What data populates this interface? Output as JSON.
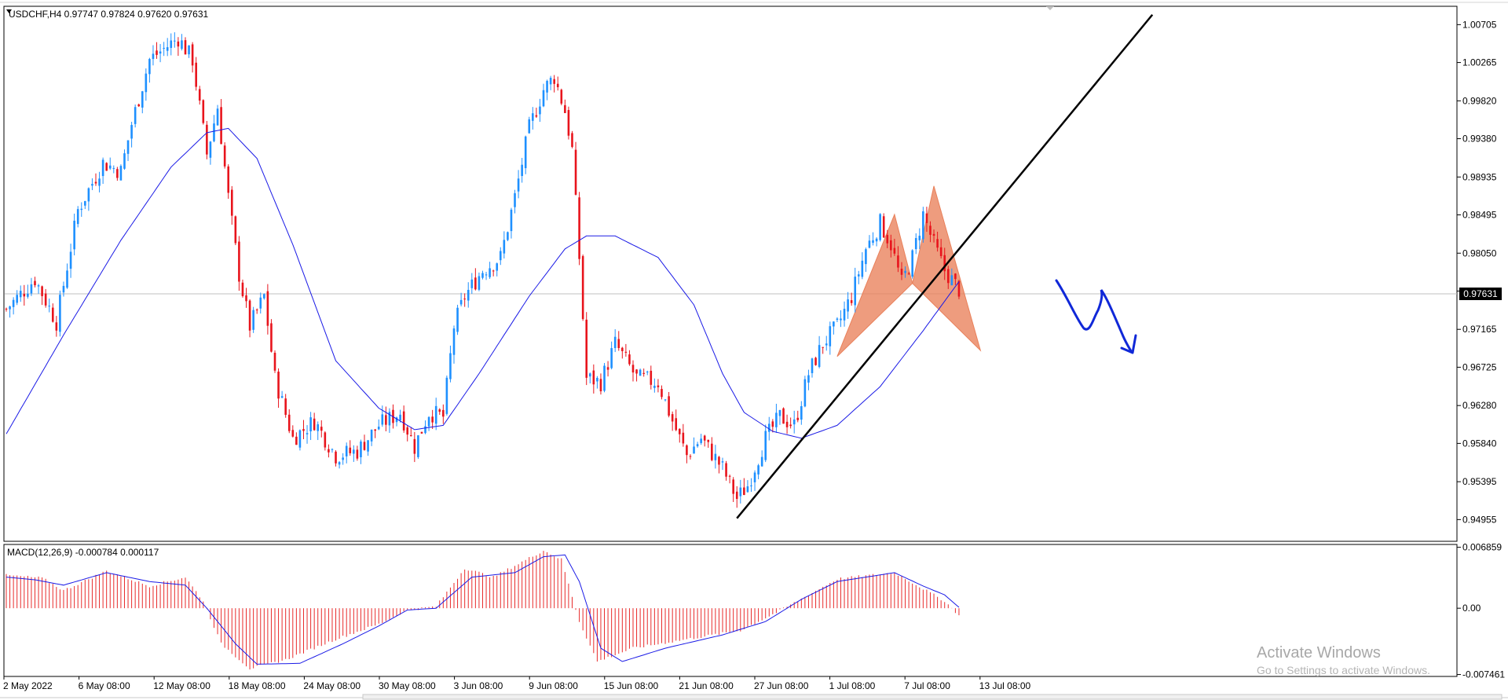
{
  "window": {
    "symbol_info": "USDCHF,H4  0.97747 0.97824 0.97620 0.97631"
  },
  "colors": {
    "bull": "#1e90ff",
    "bear": "#e8141c",
    "ma": "#1a1ae6",
    "macd_hist": "#e82a2a",
    "macd_signal": "#1a1ae6",
    "pattern_fill": "#e9805a",
    "trendline": "#000000",
    "drawing": "#1028d8",
    "frame": "#000000",
    "bid_line": "#c0c0c0"
  },
  "watermark": {
    "title": "Activate Windows",
    "subtitle": "Go to Settings to activate Windows."
  },
  "chart_data": [
    {
      "type": "candlestick",
      "title": "USDCHF,H4  0.97747 0.97824 0.97620 0.97631",
      "ylim": [
        0.9473,
        1.009
      ],
      "y_ticks": [
        "1.00705",
        "1.00265",
        "0.99820",
        "0.99380",
        "0.98935",
        "0.98495",
        "0.98050",
        "0.97610",
        "0.97165",
        "0.96725",
        "0.96280",
        "0.95840",
        "0.95395",
        "0.94955"
      ],
      "current_price": "0.97631",
      "x_ticks": [
        "2 May 2022",
        "6 May 08:00",
        "12 May 08:00",
        "18 May 08:00",
        "24 May 08:00",
        "30 May 08:00",
        "3 Jun 08:00",
        "9 Jun 08:00",
        "15 Jun 08:00",
        "21 Jun 08:00",
        "27 Jun 08:00",
        "1 Jul 08:00",
        "7 Jul 08:00",
        "13 Jul 08:00"
      ],
      "price_path": [
        {
          "bar": 0,
          "close": 0.974
        },
        {
          "bar": 8,
          "close": 0.9775
        },
        {
          "bar": 14,
          "close": 0.9725
        },
        {
          "bar": 20,
          "close": 0.9855
        },
        {
          "bar": 27,
          "close": 0.991
        },
        {
          "bar": 32,
          "close": 0.99
        },
        {
          "bar": 35,
          "close": 0.9955
        },
        {
          "bar": 40,
          "close": 1.003
        },
        {
          "bar": 48,
          "close": 1.0055
        },
        {
          "bar": 52,
          "close": 1.003
        },
        {
          "bar": 56,
          "close": 0.992
        },
        {
          "bar": 59,
          "close": 0.9975
        },
        {
          "bar": 62,
          "close": 0.987
        },
        {
          "bar": 65,
          "close": 0.978
        },
        {
          "bar": 68,
          "close": 0.972
        },
        {
          "bar": 72,
          "close": 0.9755
        },
        {
          "bar": 75,
          "close": 0.966
        },
        {
          "bar": 80,
          "close": 0.959
        },
        {
          "bar": 86,
          "close": 0.961
        },
        {
          "bar": 92,
          "close": 0.957
        },
        {
          "bar": 98,
          "close": 0.9575
        },
        {
          "bar": 104,
          "close": 0.9605
        },
        {
          "bar": 110,
          "close": 0.962
        },
        {
          "bar": 114,
          "close": 0.958
        },
        {
          "bar": 118,
          "close": 0.962
        },
        {
          "bar": 122,
          "close": 0.9615
        },
        {
          "bar": 125,
          "close": 0.972
        },
        {
          "bar": 128,
          "close": 0.9755
        },
        {
          "bar": 133,
          "close": 0.9785
        },
        {
          "bar": 138,
          "close": 0.98
        },
        {
          "bar": 142,
          "close": 0.987
        },
        {
          "bar": 146,
          "close": 0.995
        },
        {
          "bar": 150,
          "close": 0.9995
        },
        {
          "bar": 153,
          "close": 1.001
        },
        {
          "bar": 156,
          "close": 0.997
        },
        {
          "bar": 158,
          "close": 0.9925
        },
        {
          "bar": 160,
          "close": 0.98
        },
        {
          "bar": 162,
          "close": 0.966
        },
        {
          "bar": 166,
          "close": 0.9655
        },
        {
          "bar": 170,
          "close": 0.97
        },
        {
          "bar": 176,
          "close": 0.966
        },
        {
          "bar": 182,
          "close": 0.9655
        },
        {
          "bar": 186,
          "close": 0.961
        },
        {
          "bar": 190,
          "close": 0.957
        },
        {
          "bar": 194,
          "close": 0.959
        },
        {
          "bar": 200,
          "close": 0.9555
        },
        {
          "bar": 204,
          "close": 0.952
        },
        {
          "bar": 207,
          "close": 0.9535
        },
        {
          "bar": 212,
          "close": 0.959
        },
        {
          "bar": 216,
          "close": 0.9615
        },
        {
          "bar": 220,
          "close": 0.9605
        },
        {
          "bar": 224,
          "close": 0.9665
        },
        {
          "bar": 228,
          "close": 0.97
        },
        {
          "bar": 232,
          "close": 0.972
        },
        {
          "bar": 236,
          "close": 0.9755
        },
        {
          "bar": 240,
          "close": 0.981
        },
        {
          "bar": 244,
          "close": 0.984
        },
        {
          "bar": 247,
          "close": 0.9815
        },
        {
          "bar": 250,
          "close": 0.977
        },
        {
          "bar": 253,
          "close": 0.98
        },
        {
          "bar": 256,
          "close": 0.985
        },
        {
          "bar": 259,
          "close": 0.9815
        },
        {
          "bar": 262,
          "close": 0.9785
        },
        {
          "bar": 266,
          "close": 0.9763
        }
      ],
      "moving_average": [
        {
          "bar": 0,
          "value": 0.9595
        },
        {
          "bar": 16,
          "value": 0.971
        },
        {
          "bar": 32,
          "value": 0.982
        },
        {
          "bar": 46,
          "value": 0.9905
        },
        {
          "bar": 56,
          "value": 0.9945
        },
        {
          "bar": 62,
          "value": 0.995
        },
        {
          "bar": 70,
          "value": 0.9915
        },
        {
          "bar": 80,
          "value": 0.9815
        },
        {
          "bar": 92,
          "value": 0.968
        },
        {
          "bar": 104,
          "value": 0.9625
        },
        {
          "bar": 114,
          "value": 0.96
        },
        {
          "bar": 122,
          "value": 0.9605
        },
        {
          "bar": 132,
          "value": 0.9665
        },
        {
          "bar": 146,
          "value": 0.9755
        },
        {
          "bar": 156,
          "value": 0.981
        },
        {
          "bar": 162,
          "value": 0.9825
        },
        {
          "bar": 170,
          "value": 0.9825
        },
        {
          "bar": 182,
          "value": 0.98
        },
        {
          "bar": 192,
          "value": 0.9745
        },
        {
          "bar": 200,
          "value": 0.9665
        },
        {
          "bar": 206,
          "value": 0.962
        },
        {
          "bar": 214,
          "value": 0.9598
        },
        {
          "bar": 222,
          "value": 0.959
        },
        {
          "bar": 232,
          "value": 0.9605
        },
        {
          "bar": 244,
          "value": 0.965
        },
        {
          "bar": 256,
          "value": 0.9715
        },
        {
          "bar": 266,
          "value": 0.9772
        }
      ],
      "trendline": [
        {
          "bar": 204,
          "price": 0.9497
        },
        {
          "bar": 320,
          "price": 1.0082
        }
      ],
      "harmonic_pattern": {
        "left": [
          {
            "bar": 232,
            "price": 0.9685
          },
          {
            "bar": 248,
            "price": 0.985
          },
          {
            "bar": 253,
            "price": 0.977
          }
        ],
        "right": [
          {
            "bar": 253,
            "price": 0.977
          },
          {
            "bar": 259,
            "price": 0.9883
          },
          {
            "bar": 272,
            "price": 0.9692
          }
        ]
      }
    },
    {
      "type": "bar",
      "title": "MACD(12,26,9) -0.000784 0.000117",
      "ylim": [
        -0.0075,
        0.007
      ],
      "y_ticks": [
        "0.006859",
        "0.00",
        "-0.007461"
      ],
      "histogram": [
        {
          "bar": 0,
          "value": 0.0037
        },
        {
          "bar": 10,
          "value": 0.0034
        },
        {
          "bar": 16,
          "value": 0.002
        },
        {
          "bar": 28,
          "value": 0.0042
        },
        {
          "bar": 40,
          "value": 0.0025
        },
        {
          "bar": 50,
          "value": 0.0035
        },
        {
          "bar": 55,
          "value": 0.0008
        },
        {
          "bar": 60,
          "value": -0.004
        },
        {
          "bar": 68,
          "value": -0.0068
        },
        {
          "bar": 78,
          "value": -0.0058
        },
        {
          "bar": 92,
          "value": -0.0035
        },
        {
          "bar": 104,
          "value": -0.0018
        },
        {
          "bar": 112,
          "value": -0.0002
        },
        {
          "bar": 120,
          "value": 0.0002
        },
        {
          "bar": 128,
          "value": 0.0045
        },
        {
          "bar": 136,
          "value": 0.0035
        },
        {
          "bar": 150,
          "value": 0.0065
        },
        {
          "bar": 155,
          "value": 0.0055
        },
        {
          "bar": 160,
          "value": -0.0015
        },
        {
          "bar": 165,
          "value": -0.006
        },
        {
          "bar": 175,
          "value": -0.0045
        },
        {
          "bar": 190,
          "value": -0.0035
        },
        {
          "bar": 205,
          "value": -0.0025
        },
        {
          "bar": 215,
          "value": -0.0005
        },
        {
          "bar": 224,
          "value": 0.0015
        },
        {
          "bar": 232,
          "value": 0.0033
        },
        {
          "bar": 248,
          "value": 0.004
        },
        {
          "bar": 256,
          "value": 0.0022
        },
        {
          "bar": 262,
          "value": 0.0008
        },
        {
          "bar": 266,
          "value": -0.0008
        }
      ],
      "signal": [
        {
          "bar": 0,
          "value": 0.0035
        },
        {
          "bar": 8,
          "value": 0.0032
        },
        {
          "bar": 16,
          "value": 0.0026
        },
        {
          "bar": 28,
          "value": 0.004
        },
        {
          "bar": 40,
          "value": 0.003
        },
        {
          "bar": 50,
          "value": 0.0026
        },
        {
          "bar": 56,
          "value": 0.0
        },
        {
          "bar": 64,
          "value": -0.004
        },
        {
          "bar": 70,
          "value": -0.0063
        },
        {
          "bar": 82,
          "value": -0.0062
        },
        {
          "bar": 94,
          "value": -0.004
        },
        {
          "bar": 104,
          "value": -0.002
        },
        {
          "bar": 112,
          "value": -0.0002
        },
        {
          "bar": 120,
          "value": 0.0
        },
        {
          "bar": 130,
          "value": 0.0035
        },
        {
          "bar": 142,
          "value": 0.004
        },
        {
          "bar": 150,
          "value": 0.0058
        },
        {
          "bar": 156,
          "value": 0.006
        },
        {
          "bar": 160,
          "value": 0.003
        },
        {
          "bar": 166,
          "value": -0.0045
        },
        {
          "bar": 172,
          "value": -0.006
        },
        {
          "bar": 184,
          "value": -0.0045
        },
        {
          "bar": 200,
          "value": -0.003
        },
        {
          "bar": 212,
          "value": -0.0015
        },
        {
          "bar": 222,
          "value": 0.001
        },
        {
          "bar": 232,
          "value": 0.003
        },
        {
          "bar": 248,
          "value": 0.004
        },
        {
          "bar": 256,
          "value": 0.0025
        },
        {
          "bar": 262,
          "value": 0.0015
        },
        {
          "bar": 266,
          "value": 0.0001
        }
      ]
    }
  ]
}
